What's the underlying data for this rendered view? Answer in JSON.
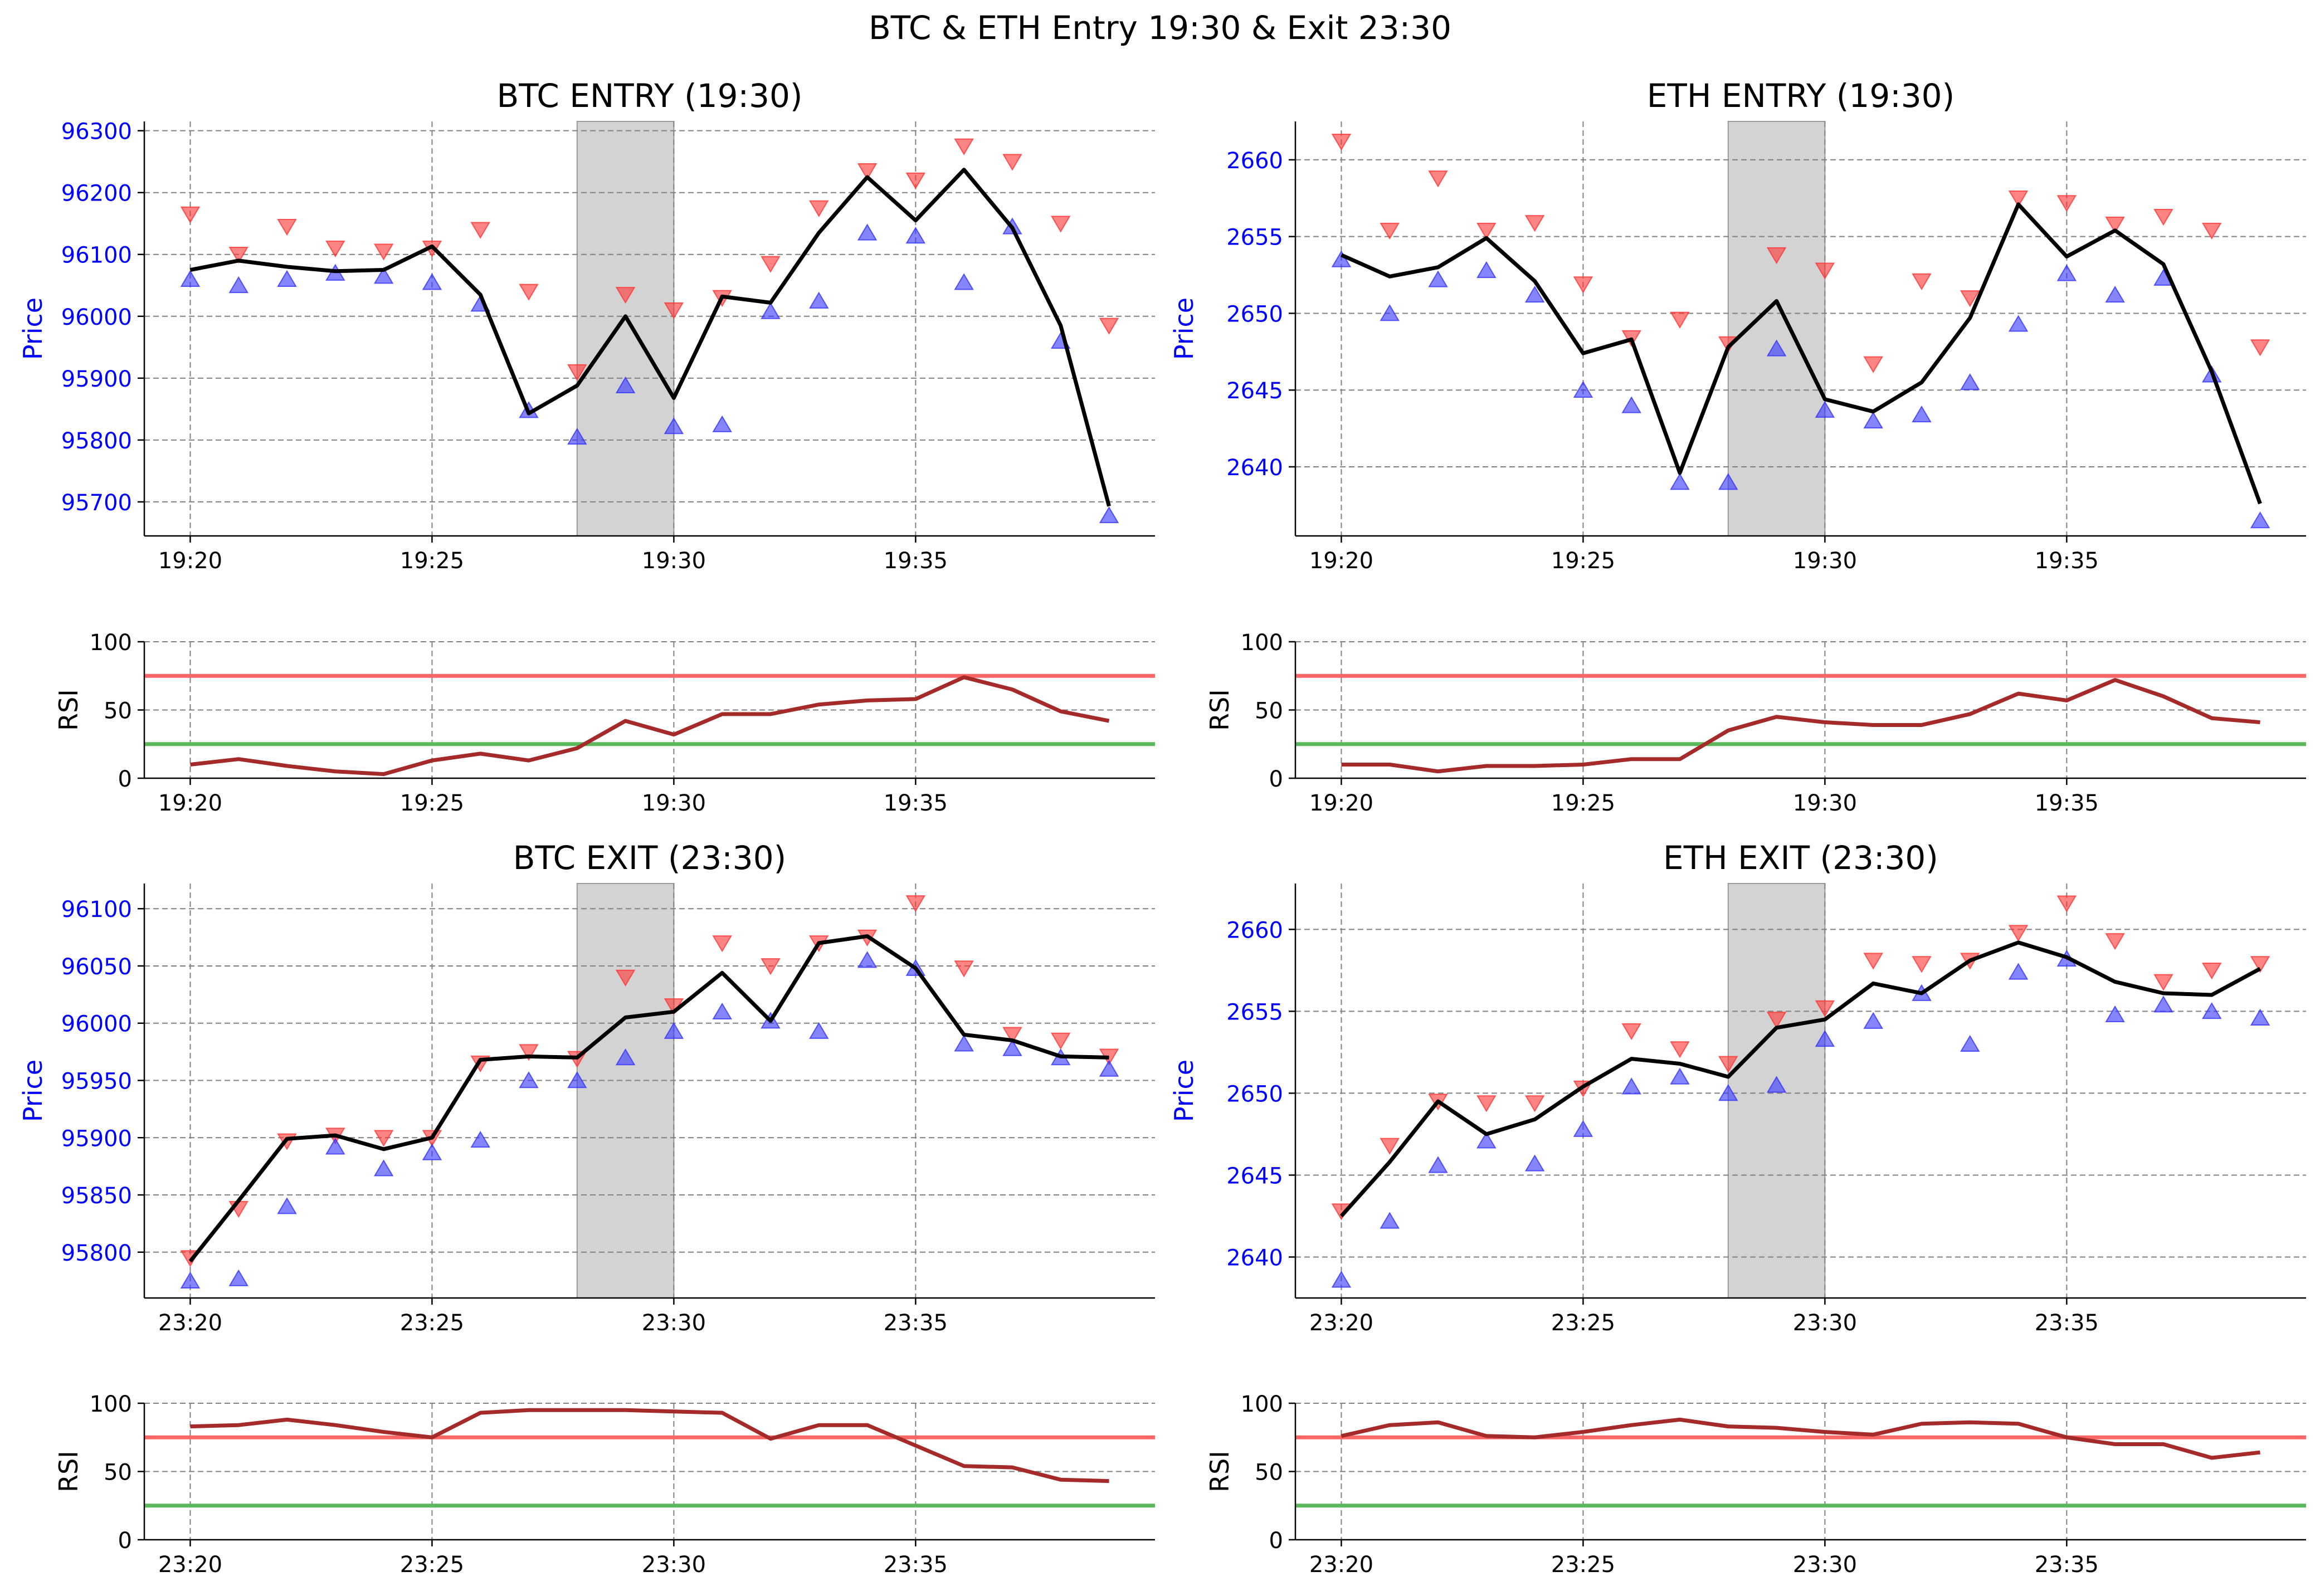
{
  "figure": {
    "suptitle": "BTC & ETH Entry 19:30 & Exit 23:30"
  },
  "colors": {
    "close_line": "#000000",
    "high_marker": "#ff3333",
    "low_marker": "#3333ff",
    "rsi_line": "#a52a2a",
    "rsi_overbought": "#ff6666",
    "rsi_oversold": "#5cb85c",
    "highlight": "#d3d3d3",
    "grid": "#808080",
    "price_tick": "#0000ff",
    "price_label": "#0000ff"
  },
  "chart_data": [
    {
      "type": "line",
      "title": "BTC ENTRY (19:30)",
      "ylabel": "Price",
      "rsi_ylabel": "RSI",
      "x": [
        "19:20",
        "19:21",
        "19:22",
        "19:23",
        "19:24",
        "19:25",
        "19:26",
        "19:27",
        "19:28",
        "19:29",
        "19:30",
        "19:31",
        "19:32",
        "19:33",
        "19:34",
        "19:35",
        "19:36",
        "19:37",
        "19:38",
        "19:39"
      ],
      "xticks": [
        "19:20",
        "19:25",
        "19:30",
        "19:35"
      ],
      "highlight": [
        "19:28",
        "19:30"
      ],
      "ylim": [
        95645,
        96315
      ],
      "yticks": [
        95700,
        95800,
        95900,
        96000,
        96100,
        96200,
        96300
      ],
      "close": [
        96075,
        96090,
        96080,
        96073,
        96075,
        96113,
        96035,
        95843,
        95888,
        96000,
        95868,
        96032,
        96022,
        96135,
        96225,
        96155,
        96237,
        96143,
        95985,
        95693
      ],
      "high": [
        96165,
        96100,
        96145,
        96110,
        96105,
        96110,
        96140,
        96040,
        95910,
        96035,
        96010,
        96030,
        96085,
        96175,
        96235,
        96220,
        96275,
        96250,
        96150,
        95985
      ],
      "low": [
        96060,
        96050,
        96060,
        96070,
        96065,
        96055,
        96020,
        95848,
        95805,
        95888,
        95822,
        95825,
        96008,
        96025,
        96135,
        96130,
        96055,
        96145,
        95960,
        95678
      ],
      "rsi": [
        10,
        14,
        9,
        5,
        3,
        13,
        18,
        13,
        22,
        42,
        32,
        47,
        47,
        54,
        57,
        58,
        74,
        65,
        49,
        42
      ],
      "rsi_ylim": [
        0,
        100
      ],
      "rsi_yticks": [
        0,
        50,
        100
      ],
      "rsi_overbought": 75,
      "rsi_oversold": 25,
      "grid": true
    },
    {
      "type": "line",
      "title": "ETH ENTRY (19:30)",
      "ylabel": "Price",
      "rsi_ylabel": "RSI",
      "x": [
        "19:20",
        "19:21",
        "19:22",
        "19:23",
        "19:24",
        "19:25",
        "19:26",
        "19:27",
        "19:28",
        "19:29",
        "19:30",
        "19:31",
        "19:32",
        "19:33",
        "19:34",
        "19:35",
        "19:36",
        "19:37",
        "19:38",
        "19:39"
      ],
      "xticks": [
        "19:20",
        "19:25",
        "19:30",
        "19:35"
      ],
      "highlight": [
        "19:28",
        "19:30"
      ],
      "ylim": [
        2635.5,
        2662.5
      ],
      "yticks": [
        2640,
        2645,
        2650,
        2655,
        2660
      ],
      "close": [
        2653.8,
        2652.4,
        2653.0,
        2654.9,
        2652.1,
        2647.4,
        2648.3,
        2639.6,
        2647.8,
        2650.8,
        2644.4,
        2643.6,
        2645.5,
        2649.7,
        2657.1,
        2653.7,
        2655.4,
        2653.2,
        2646.2,
        2637.6
      ],
      "high": [
        2661.2,
        2655.4,
        2658.8,
        2655.4,
        2655.9,
        2651.9,
        2648.4,
        2649.6,
        2648.0,
        2653.8,
        2652.8,
        2646.7,
        2652.1,
        2651.0,
        2657.5,
        2657.2,
        2655.8,
        2656.3,
        2655.4,
        2647.8
      ],
      "low": [
        2653.5,
        2650.0,
        2652.2,
        2652.8,
        2651.2,
        2645.0,
        2644.0,
        2639.0,
        2639.0,
        2647.7,
        2643.7,
        2643.0,
        2643.4,
        2645.5,
        2649.3,
        2652.6,
        2651.2,
        2652.3,
        2646.0,
        2636.5
      ],
      "rsi": [
        10,
        10,
        5,
        9,
        9,
        10,
        14,
        14,
        35,
        45,
        41,
        39,
        39,
        47,
        62,
        57,
        72,
        60,
        44,
        41
      ],
      "rsi_ylim": [
        0,
        100
      ],
      "rsi_yticks": [
        0,
        50,
        100
      ],
      "rsi_overbought": 75,
      "rsi_oversold": 25,
      "grid": true
    },
    {
      "type": "line",
      "title": "BTC EXIT (23:30)",
      "ylabel": "Price",
      "rsi_ylabel": "RSI",
      "x": [
        "23:20",
        "23:21",
        "23:22",
        "23:23",
        "23:24",
        "23:25",
        "23:26",
        "23:27",
        "23:28",
        "23:29",
        "23:30",
        "23:31",
        "23:32",
        "23:33",
        "23:34",
        "23:35",
        "23:36",
        "23:37",
        "23:38",
        "23:39"
      ],
      "xticks": [
        "23:20",
        "23:25",
        "23:30",
        "23:35"
      ],
      "highlight": [
        "23:28",
        "23:30"
      ],
      "ylim": [
        95760,
        96122
      ],
      "yticks": [
        95800,
        95850,
        95900,
        95950,
        96000,
        96050,
        96100
      ],
      "close": [
        95792,
        95845,
        95899,
        95902,
        95890,
        95900,
        95968,
        95971,
        95970,
        96005,
        96010,
        96044,
        96002,
        96070,
        96076,
        96048,
        95990,
        95985,
        95971,
        95970
      ],
      "high": [
        95795,
        95838,
        95897,
        95902,
        95900,
        95900,
        95965,
        95975,
        95969,
        96040,
        96015,
        96070,
        96050,
        96070,
        96075,
        96105,
        96048,
        95990,
        95985,
        95971
      ],
      "low": [
        95775,
        95777,
        95840,
        95892,
        95873,
        95887,
        95898,
        95950,
        95950,
        95970,
        95993,
        96010,
        96002,
        95993,
        96055,
        96048,
        95982,
        95978,
        95970,
        95960
      ],
      "rsi": [
        83,
        84,
        88,
        84,
        79,
        75,
        93,
        95,
        95,
        95,
        94,
        93,
        74,
        84,
        84,
        69,
        54,
        53,
        44,
        43
      ],
      "rsi_ylim": [
        0,
        100
      ],
      "rsi_yticks": [
        0,
        50,
        100
      ],
      "rsi_overbought": 75,
      "rsi_oversold": 25,
      "grid": true
    },
    {
      "type": "line",
      "title": "ETH EXIT (23:30)",
      "ylabel": "Price",
      "rsi_ylabel": "RSI",
      "x": [
        "23:20",
        "23:21",
        "23:22",
        "23:23",
        "23:24",
        "23:25",
        "23:26",
        "23:27",
        "23:28",
        "23:29",
        "23:30",
        "23:31",
        "23:32",
        "23:33",
        "23:34",
        "23:35",
        "23:36",
        "23:37",
        "23:38",
        "23:39"
      ],
      "xticks": [
        "23:20",
        "23:25",
        "23:30",
        "23:35"
      ],
      "highlight": [
        "23:28",
        "23:30"
      ],
      "ylim": [
        2637.5,
        2662.8
      ],
      "yticks": [
        2640,
        2645,
        2650,
        2655,
        2660
      ],
      "close": [
        2642.5,
        2645.8,
        2649.5,
        2647.5,
        2648.4,
        2650.4,
        2652.1,
        2651.8,
        2651.0,
        2654.0,
        2654.5,
        2656.7,
        2656.1,
        2658.1,
        2659.2,
        2658.3,
        2656.8,
        2656.1,
        2656.0,
        2657.6
      ],
      "high": [
        2642.8,
        2646.8,
        2649.5,
        2649.4,
        2649.4,
        2650.3,
        2653.8,
        2652.7,
        2651.8,
        2654.5,
        2655.2,
        2658.1,
        2657.9,
        2658.1,
        2659.8,
        2661.6,
        2659.3,
        2656.8,
        2657.5,
        2657.9
      ],
      "low": [
        2638.6,
        2642.2,
        2645.6,
        2647.1,
        2645.7,
        2647.8,
        2650.4,
        2651.0,
        2650.0,
        2650.5,
        2653.3,
        2654.4,
        2656.1,
        2653.0,
        2657.4,
        2658.2,
        2654.8,
        2655.4,
        2655.0,
        2654.6
      ],
      "rsi": [
        76,
        84,
        86,
        76,
        75,
        79,
        84,
        88,
        83,
        82,
        79,
        77,
        85,
        86,
        85,
        75,
        70,
        70,
        60,
        64
      ],
      "rsi_ylim": [
        0,
        100
      ],
      "rsi_yticks": [
        0,
        50,
        100
      ],
      "rsi_overbought": 75,
      "rsi_oversold": 25,
      "grid": true
    }
  ]
}
